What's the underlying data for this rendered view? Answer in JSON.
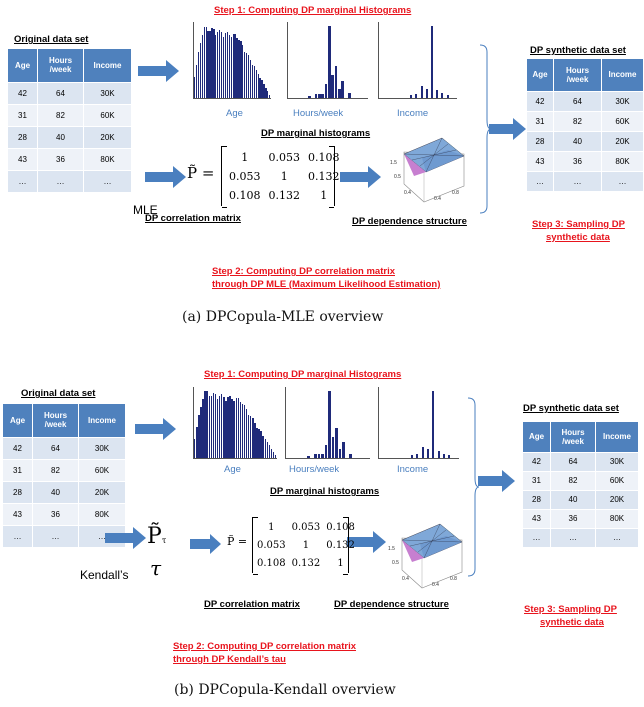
{
  "panel_a": {
    "step1": "Step 1: Computing DP marginal Histograms",
    "original_title": "Original data set",
    "table_headers": [
      "Age",
      "Hours\n/week",
      "Income"
    ],
    "table_rows": [
      [
        "42",
        "64",
        "30K"
      ],
      [
        "31",
        "82",
        "60K"
      ],
      [
        "28",
        "40",
        "20K"
      ],
      [
        "43",
        "36",
        "80K"
      ],
      [
        "…",
        "…",
        "…"
      ]
    ],
    "hist_labels": [
      "Age",
      "Hours/week",
      "Income"
    ],
    "hist_caption": "DP marginal histograms",
    "mle_label": "MLE",
    "matrix": [
      [
        "1",
        "0.053",
        "0.108"
      ],
      [
        "0.053",
        "1",
        "0.132"
      ],
      [
        "0.108",
        "0.132",
        "1"
      ]
    ],
    "corr_caption": "DP correlation matrix",
    "dep_caption": "DP dependence structure",
    "step2_line1": "Step 2: Computing DP correlation matrix",
    "step2_line2": "through DP MLE (Maximum Likelihood Estimation)",
    "synthetic_title": "DP synthetic data set",
    "step3_line1": "Step 3: Sampling DP",
    "step3_line2": "synthetic data",
    "caption": "(a) DPCopula-MLE overview"
  },
  "panel_b": {
    "step1": "Step 1: Computing DP marginal Histograms",
    "original_title": "Original data set",
    "table_headers": [
      "Age",
      "Hours\n/week",
      "Income"
    ],
    "table_rows": [
      [
        "42",
        "64",
        "30K"
      ],
      [
        "31",
        "82",
        "60K"
      ],
      [
        "28",
        "40",
        "20K"
      ],
      [
        "43",
        "36",
        "80K"
      ],
      [
        "…",
        "…",
        "…"
      ]
    ],
    "hist_labels": [
      "Age",
      "Hours/week",
      "Income"
    ],
    "hist_caption": "DP marginal histograms",
    "kendall_label": "Kendall’s",
    "tau_symbol": "τ",
    "matrix": [
      [
        "1",
        "0.053",
        "0.108"
      ],
      [
        "0.053",
        "1",
        "0.132"
      ],
      [
        "0.108",
        "0.132",
        "1"
      ]
    ],
    "corr_caption": "DP correlation matrix",
    "dep_caption": "DP dependence structure",
    "step2_line1": "Step 2: Computing DP correlation matrix",
    "step2_line2": "through DP Kendall’s tau",
    "synthetic_title": "DP synthetic data set",
    "step3_line1": "Step 3: Sampling DP",
    "step3_line2": "synthetic data",
    "caption": "(b) DPCopula-Kendall overview"
  },
  "colors": {
    "accent_red": "#e8141d",
    "header_blue": "#4f81bd",
    "arrow_blue": "#4a7fbf",
    "bar_navy": "#1f2a7a"
  }
}
